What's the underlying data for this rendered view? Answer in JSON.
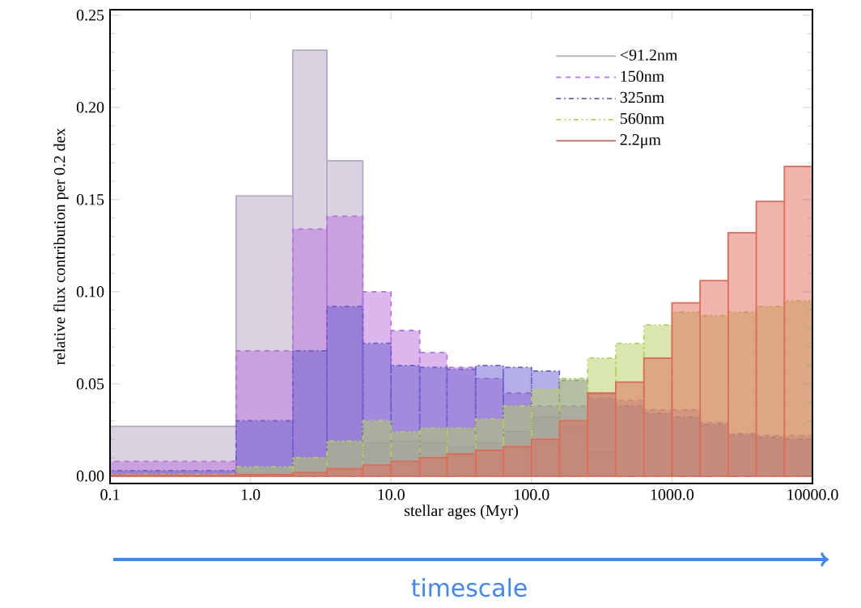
{
  "chart_data": {
    "type": "histogram",
    "xlabel": "stellar ages (Myr)",
    "ylabel": "relative flux contribution per 0.2 dex",
    "log": "x",
    "legend": "top right",
    "bins": [
      0.1,
      0.79,
      2.0,
      3.5,
      6.3,
      10,
      16,
      25,
      40,
      63,
      100,
      158,
      251,
      398,
      631,
      1000,
      1585,
      2512,
      3981,
      6310,
      10000
    ],
    "xlim": [
      0.1,
      10000
    ],
    "xticks": [
      0.1,
      {
        "value": 1,
        "label": "1.0"
      },
      {
        "value": 10,
        "label": "10.0"
      },
      {
        "value": 100,
        "label": "100.0"
      },
      {
        "value": 1000,
        "label": "1000.0"
      },
      {
        "value": 10000,
        "label": "10000.0"
      }
    ],
    "ylim": [
      -0.004,
      0.253
    ],
    "yticks": [
      {
        "value": 0,
        "label": "0.00"
      },
      0.05,
      {
        "value": 0.1,
        "label": "0.10"
      },
      0.15,
      {
        "value": 0.2,
        "label": "0.20"
      },
      0.25
    ],
    "series": [
      {
        "name": "<91.2nm",
        "color": "#b4a8c4",
        "line_style": "solid",
        "values": [
          0.027,
          0.152,
          0.231,
          0.171,
          0.018,
          0.019,
          0.018,
          0.016,
          0.018,
          0.024,
          0.032,
          0.027,
          0.013,
          0,
          0,
          0,
          0,
          0,
          0,
          0
        ]
      },
      {
        "name": "150nm",
        "color": "#b870dc",
        "line_style": "dashed",
        "values": [
          0.008,
          0.068,
          0.134,
          0.141,
          0.1,
          0.079,
          0.067,
          0.059,
          0.053,
          0.045,
          0.038,
          0.038,
          0.042,
          0.041,
          0.036,
          0.036,
          0.029,
          0.022,
          0.022,
          0.022
        ]
      },
      {
        "name": "325nm",
        "color": "#6a5fcd",
        "line_style": "dashdot",
        "values": [
          0.003,
          0.03,
          0.068,
          0.092,
          0.072,
          0.06,
          0.059,
          0.058,
          0.06,
          0.059,
          0.057,
          0.052,
          0.045,
          0.038,
          0.034,
          0.032,
          0.028,
          0.023,
          0.021,
          0.02
        ]
      },
      {
        "name": "560nm",
        "color": "#b4d060",
        "line_style": "dashdotdot",
        "values": [
          0.001,
          0.005,
          0.01,
          0.019,
          0.03,
          0.024,
          0.026,
          0.026,
          0.031,
          0.038,
          0.047,
          0.053,
          0.064,
          0.072,
          0.082,
          0.089,
          0.087,
          0.089,
          0.092,
          0.095
        ]
      },
      {
        "name": "2.2μm",
        "color": "#e06a58",
        "line_style": "solid",
        "values": [
          0.0005,
          0.001,
          0.002,
          0.004,
          0.006,
          0.008,
          0.01,
          0.012,
          0.014,
          0.016,
          0.02,
          0.03,
          0.045,
          0.051,
          0.064,
          0.094,
          0.106,
          0.132,
          0.149,
          0.168
        ]
      }
    ],
    "annotations": [
      "timescale"
    ]
  }
}
